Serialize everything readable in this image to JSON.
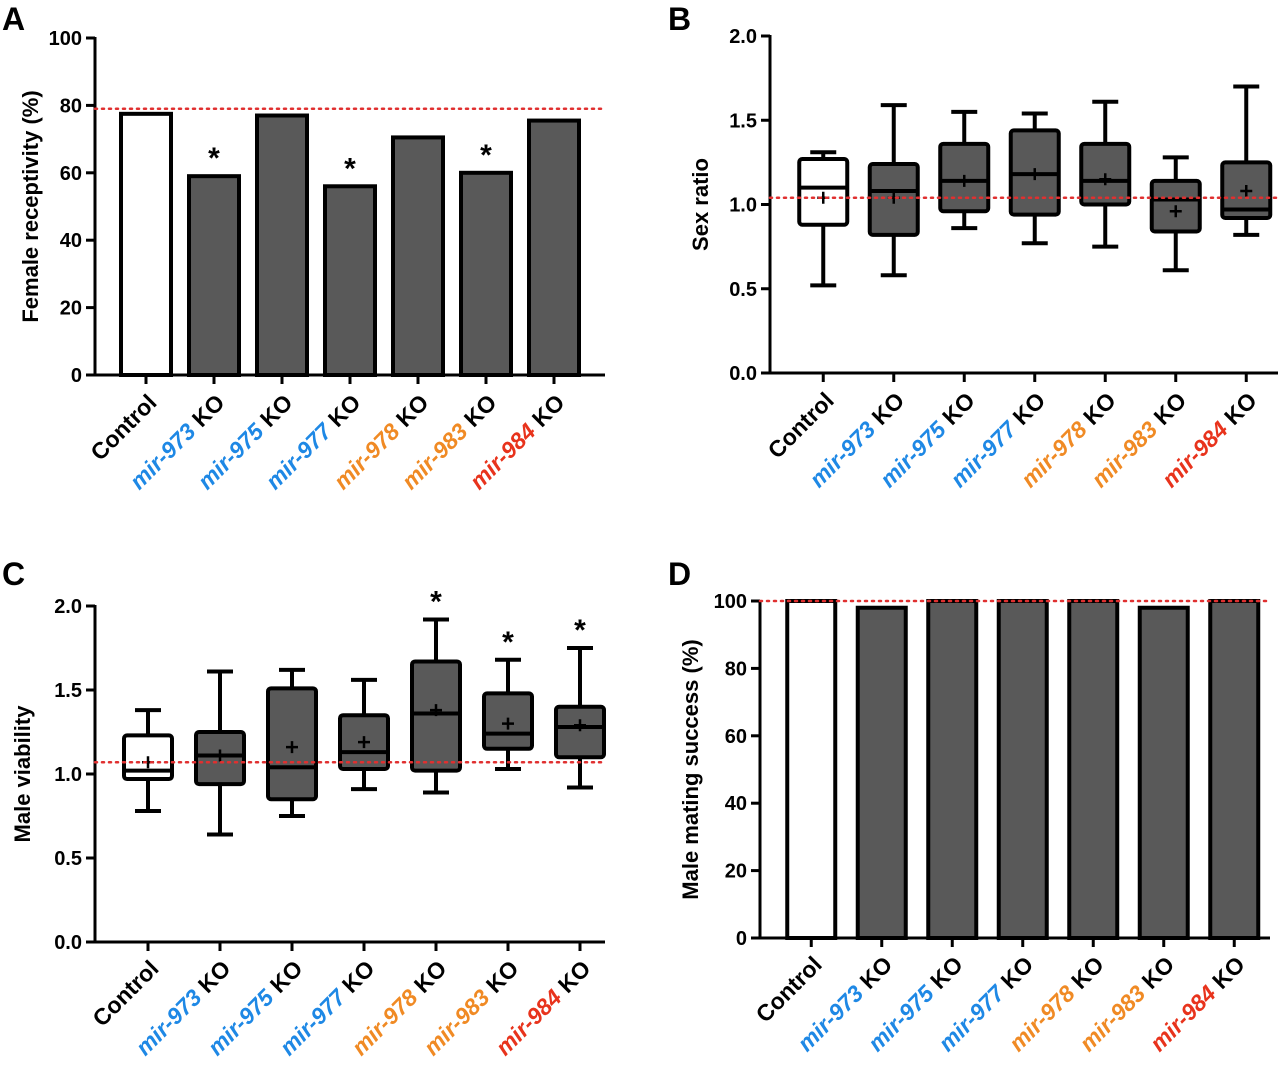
{
  "colors": {
    "control_fill": "#ffffff",
    "ko_fill": "#595959",
    "outline": "#000000",
    "reference_line": "#e03030",
    "blue": "#1e88e5",
    "orange": "#f08a24",
    "red": "#e8331c",
    "black": "#000000"
  },
  "chart_data": [
    {
      "panel": "A",
      "type": "bar",
      "ylabel": "Female receptivity (%)",
      "ylim": [
        0,
        100
      ],
      "yticks": [
        "0",
        "20",
        "40",
        "60",
        "80",
        "100"
      ],
      "reference_line": 79,
      "categories": [
        {
          "prefix": "",
          "gene": "Control",
          "suffix": "",
          "color": "black"
        },
        {
          "prefix": "mir-",
          "gene": "973",
          "suffix": " KO",
          "color": "blue"
        },
        {
          "prefix": "mir-",
          "gene": "975",
          "suffix": " KO",
          "color": "blue"
        },
        {
          "prefix": "mir-",
          "gene": "977",
          "suffix": " KO",
          "color": "blue"
        },
        {
          "prefix": "mir-",
          "gene": "978",
          "suffix": " KO",
          "color": "orange"
        },
        {
          "prefix": "mir-",
          "gene": "983",
          "suffix": " KO",
          "color": "orange"
        },
        {
          "prefix": "mir-",
          "gene": "984",
          "suffix": " KO",
          "color": "red"
        }
      ],
      "values": [
        77.5,
        59,
        77,
        56,
        70.5,
        60,
        75.5
      ],
      "significance": [
        "",
        "*",
        "",
        "*",
        "",
        "*",
        ""
      ]
    },
    {
      "panel": "B",
      "type": "box",
      "ylabel": "Sex ratio",
      "ylim": [
        0,
        2.0
      ],
      "yticks": [
        "0.0",
        "0.5",
        "1.0",
        "1.5",
        "2.0"
      ],
      "reference_line": 1.04,
      "categories": [
        {
          "prefix": "",
          "gene": "Control",
          "suffix": "",
          "color": "black"
        },
        {
          "prefix": "mir-",
          "gene": "973",
          "suffix": " KO",
          "color": "blue"
        },
        {
          "prefix": "mir-",
          "gene": "975",
          "suffix": " KO",
          "color": "blue"
        },
        {
          "prefix": "mir-",
          "gene": "977",
          "suffix": " KO",
          "color": "blue"
        },
        {
          "prefix": "mir-",
          "gene": "978",
          "suffix": " KO",
          "color": "orange"
        },
        {
          "prefix": "mir-",
          "gene": "983",
          "suffix": " KO",
          "color": "orange"
        },
        {
          "prefix": "mir-",
          "gene": "984",
          "suffix": " KO",
          "color": "red"
        }
      ],
      "boxes": [
        {
          "min": 0.52,
          "q1": 0.88,
          "median": 1.1,
          "q3": 1.27,
          "max": 1.31,
          "mean": 1.04
        },
        {
          "min": 0.58,
          "q1": 0.82,
          "median": 1.08,
          "q3": 1.24,
          "max": 1.59,
          "mean": 1.04
        },
        {
          "min": 0.86,
          "q1": 0.96,
          "median": 1.14,
          "q3": 1.36,
          "max": 1.55,
          "mean": 1.14
        },
        {
          "min": 0.77,
          "q1": 0.94,
          "median": 1.18,
          "q3": 1.44,
          "max": 1.54,
          "mean": 1.18
        },
        {
          "min": 0.75,
          "q1": 1.0,
          "median": 1.14,
          "q3": 1.36,
          "max": 1.61,
          "mean": 1.15
        },
        {
          "min": 0.61,
          "q1": 0.84,
          "median": 1.03,
          "q3": 1.14,
          "max": 1.28,
          "mean": 0.96
        },
        {
          "min": 0.82,
          "q1": 0.92,
          "median": 0.97,
          "q3": 1.25,
          "max": 1.7,
          "mean": 1.08
        }
      ],
      "significance": [
        "",
        "",
        "",
        "",
        "",
        "",
        ""
      ]
    },
    {
      "panel": "C",
      "type": "box",
      "ylabel": "Male viability",
      "ylim": [
        0,
        2.0
      ],
      "yticks": [
        "0.0",
        "0.5",
        "1.0",
        "1.5",
        "2.0"
      ],
      "reference_line": 1.07,
      "categories": [
        {
          "prefix": "",
          "gene": "Control",
          "suffix": "",
          "color": "black"
        },
        {
          "prefix": "mir-",
          "gene": "973",
          "suffix": " KO",
          "color": "blue"
        },
        {
          "prefix": "mir-",
          "gene": "975",
          "suffix": " KO",
          "color": "blue"
        },
        {
          "prefix": "mir-",
          "gene": "977",
          "suffix": " KO",
          "color": "blue"
        },
        {
          "prefix": "mir-",
          "gene": "978",
          "suffix": " KO",
          "color": "orange"
        },
        {
          "prefix": "mir-",
          "gene": "983",
          "suffix": " KO",
          "color": "orange"
        },
        {
          "prefix": "mir-",
          "gene": "984",
          "suffix": " KO",
          "color": "red"
        }
      ],
      "boxes": [
        {
          "min": 0.78,
          "q1": 0.97,
          "median": 1.02,
          "q3": 1.23,
          "max": 1.38,
          "mean": 1.07
        },
        {
          "min": 0.64,
          "q1": 0.94,
          "median": 1.11,
          "q3": 1.25,
          "max": 1.61,
          "mean": 1.11
        },
        {
          "min": 0.75,
          "q1": 0.85,
          "median": 1.04,
          "q3": 1.51,
          "max": 1.62,
          "mean": 1.16
        },
        {
          "min": 0.91,
          "q1": 1.03,
          "median": 1.13,
          "q3": 1.35,
          "max": 1.56,
          "mean": 1.19
        },
        {
          "min": 0.89,
          "q1": 1.02,
          "median": 1.36,
          "q3": 1.67,
          "max": 1.92,
          "mean": 1.38
        },
        {
          "min": 1.03,
          "q1": 1.15,
          "median": 1.24,
          "q3": 1.48,
          "max": 1.68,
          "mean": 1.3
        },
        {
          "min": 0.92,
          "q1": 1.1,
          "median": 1.28,
          "q3": 1.4,
          "max": 1.75,
          "mean": 1.29
        }
      ],
      "significance": [
        "",
        "",
        "",
        "",
        "*",
        "*",
        "*"
      ]
    },
    {
      "panel": "D",
      "type": "bar",
      "ylabel": "Male mating success (%)",
      "ylim": [
        0,
        100
      ],
      "yticks": [
        "0",
        "20",
        "40",
        "60",
        "80",
        "100"
      ],
      "reference_line": 100,
      "categories": [
        {
          "prefix": "",
          "gene": "Control",
          "suffix": "",
          "color": "black"
        },
        {
          "prefix": "mir-",
          "gene": "973",
          "suffix": " KO",
          "color": "blue"
        },
        {
          "prefix": "mir-",
          "gene": "975",
          "suffix": " KO",
          "color": "blue"
        },
        {
          "prefix": "mir-",
          "gene": "977",
          "suffix": " KO",
          "color": "blue"
        },
        {
          "prefix": "mir-",
          "gene": "978",
          "suffix": " KO",
          "color": "orange"
        },
        {
          "prefix": "mir-",
          "gene": "983",
          "suffix": " KO",
          "color": "orange"
        },
        {
          "prefix": "mir-",
          "gene": "984",
          "suffix": " KO",
          "color": "red"
        }
      ],
      "values": [
        100,
        98,
        100,
        100,
        100,
        98,
        100
      ],
      "significance": [
        "",
        "",
        "",
        "",
        "",
        "",
        ""
      ]
    }
  ]
}
